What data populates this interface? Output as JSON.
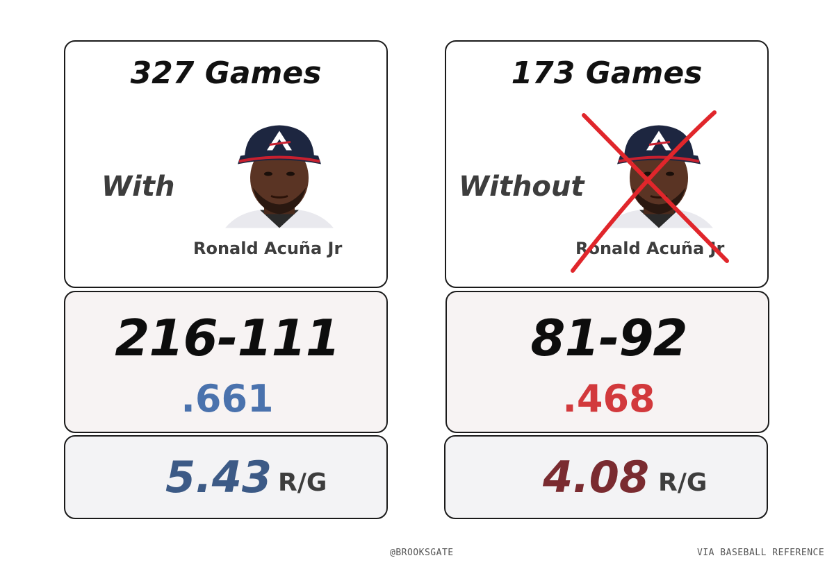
{
  "colors": {
    "with_pct": "#4a72ad",
    "without_pct": "#d2393c",
    "with_runs": "#3c5a86",
    "without_runs": "#7a2b30",
    "strike": "#e0262b"
  },
  "with": {
    "games": "327 Games",
    "label": "With",
    "player_name": "Ronald Acuña Jr",
    "record": "216-111",
    "win_pct": ".661",
    "runs": "5.43",
    "runs_unit": "R/G"
  },
  "without": {
    "games": "173 Games",
    "label": "Without",
    "player_name": "Ronald Acuña Jr",
    "record": "81-92",
    "win_pct": ".468",
    "runs": "4.08",
    "runs_unit": "R/G"
  },
  "footer": {
    "handle": "@BROOKSGATE",
    "source": "VIA BASEBALL REFERENCE"
  }
}
